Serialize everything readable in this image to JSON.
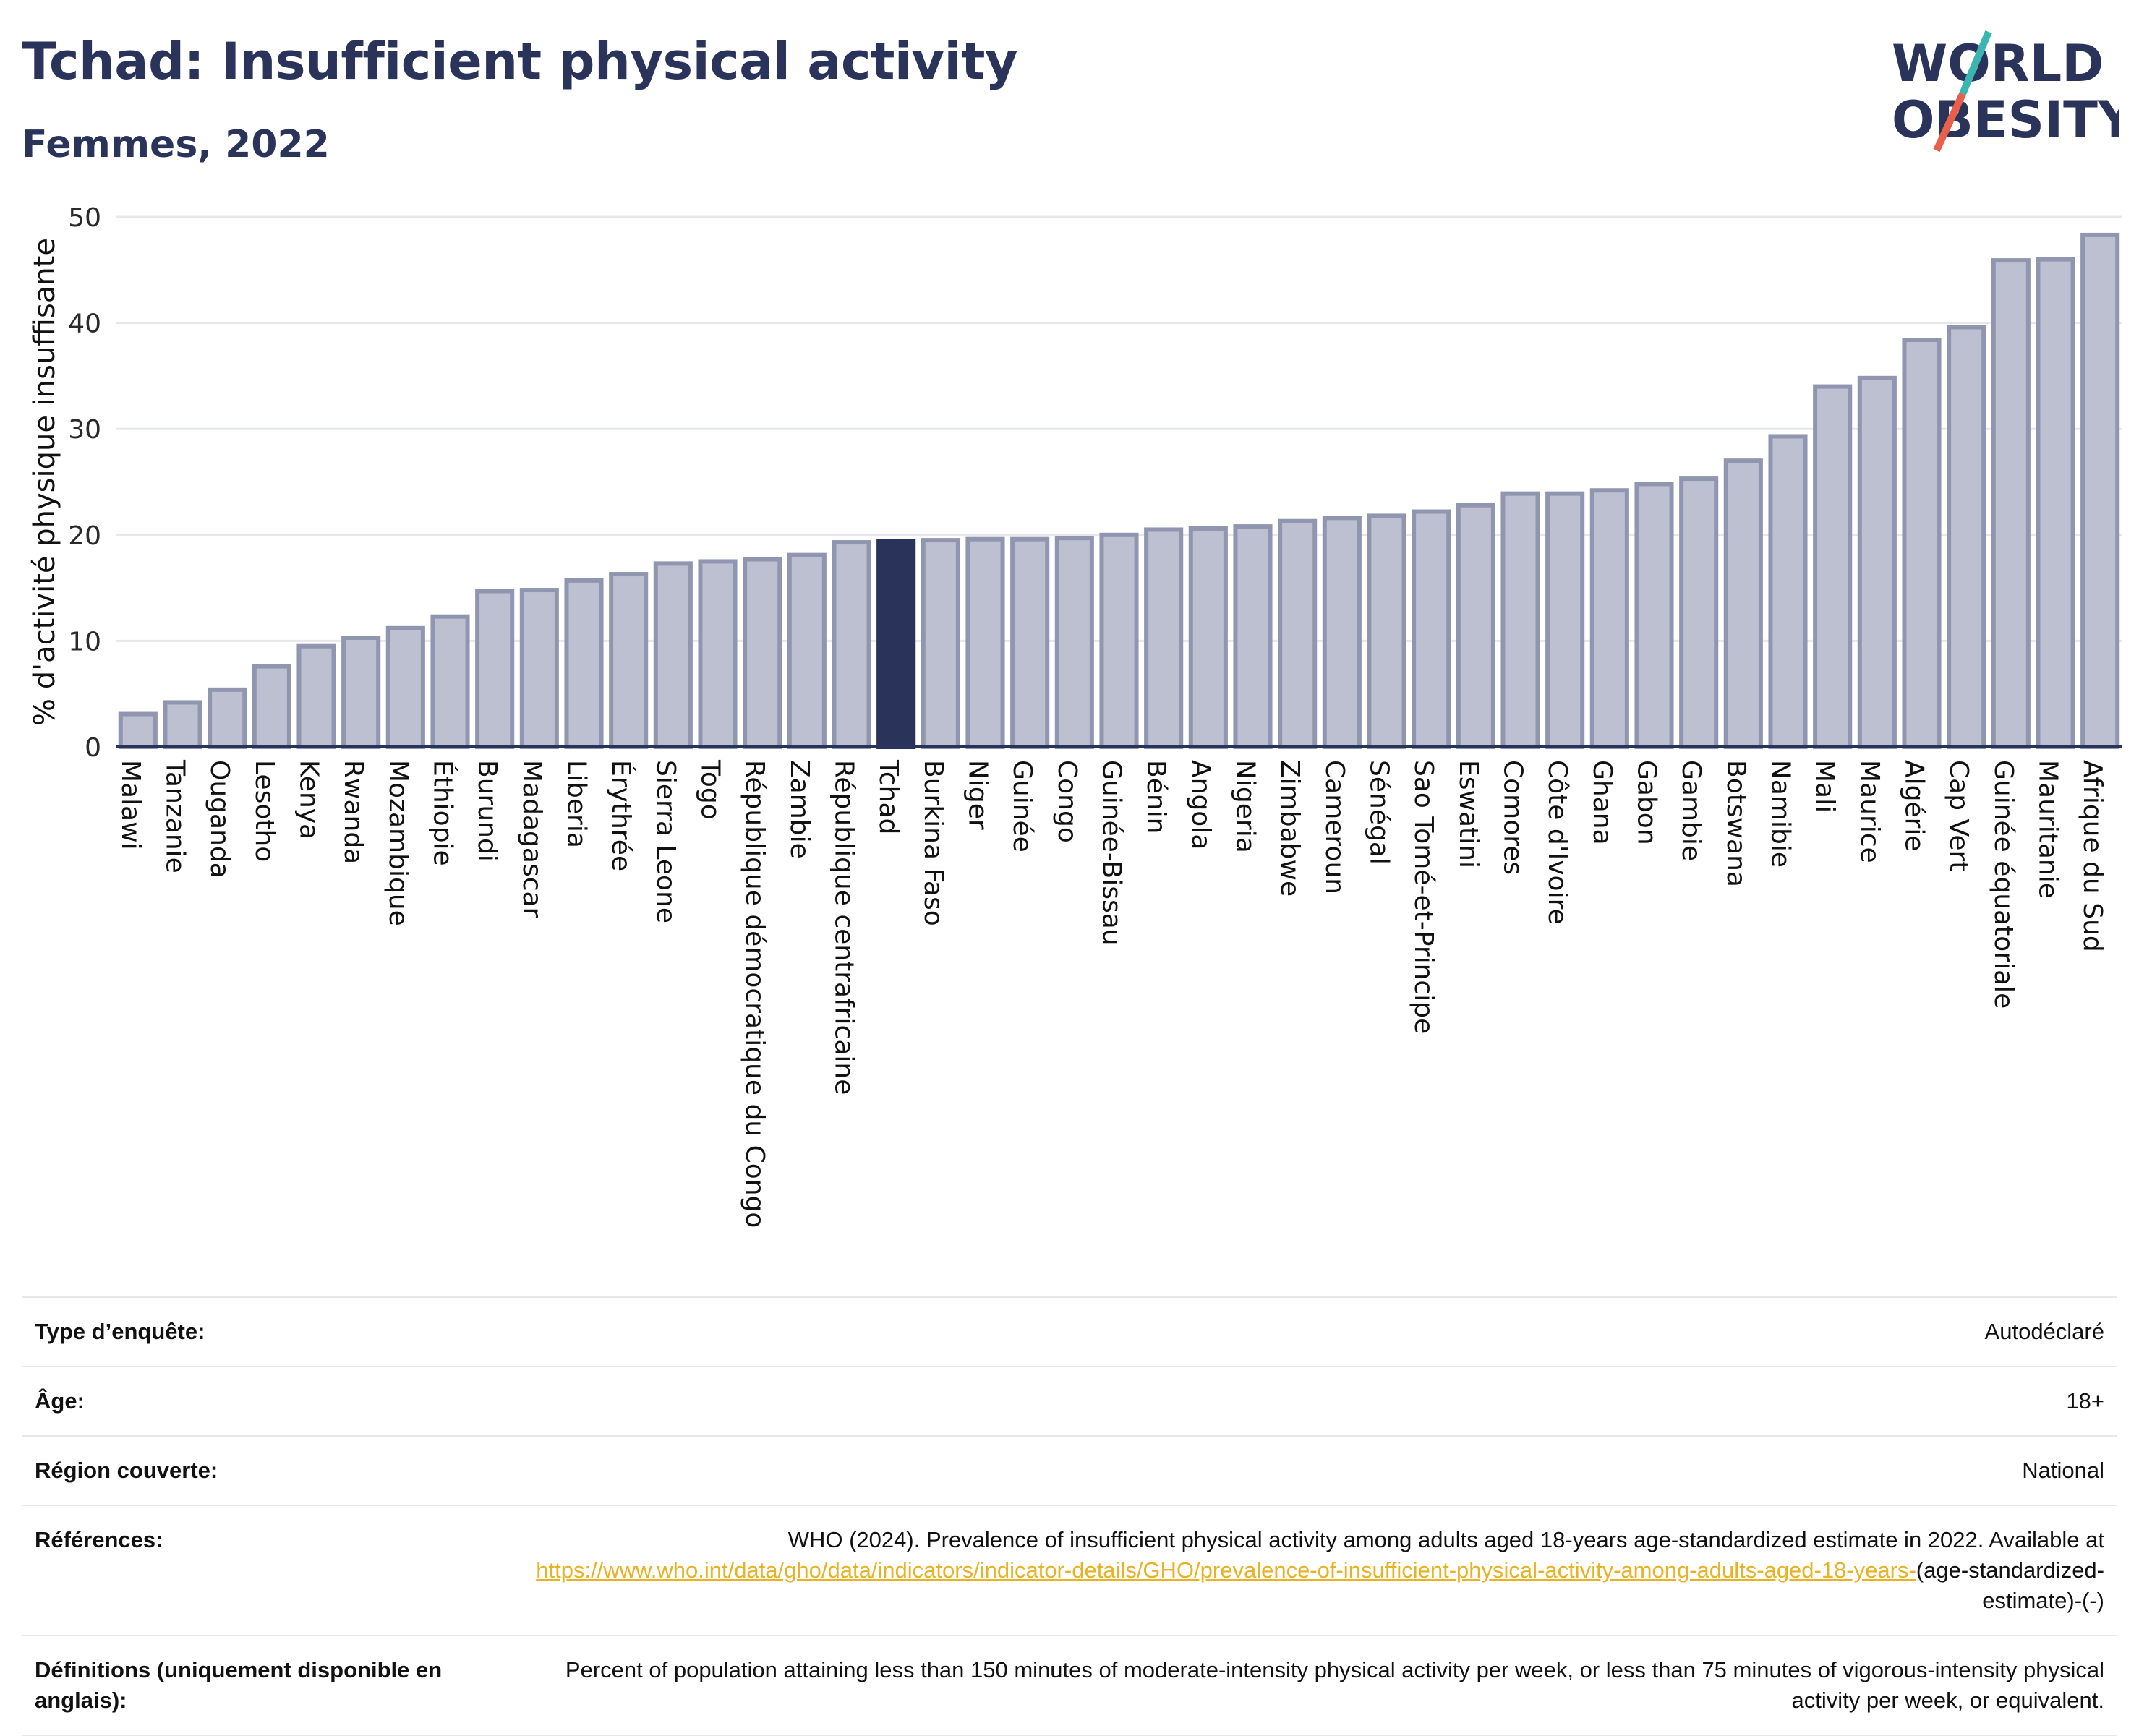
{
  "header": {
    "title": "Tchad: Insufficient physical activity",
    "subtitle": "Femmes, 2022"
  },
  "logo": {
    "line1": "WORLD",
    "line2": "OBESITY",
    "colors": {
      "text": "#2a3359",
      "slash_teal": "#3ab5b0",
      "slash_red": "#e8604c"
    }
  },
  "chart_data": {
    "type": "bar",
    "ylabel": "% d'activité physique insuffisante",
    "ylim": [
      0,
      50
    ],
    "yticks": [
      0,
      10,
      20,
      30,
      40,
      50
    ],
    "grid": true,
    "highlight": "Tchad",
    "colors": {
      "bar": "#bcc0d0",
      "bar_border": "#9096b0",
      "highlight": "#2a3359",
      "grid": "#e6e7ec"
    },
    "categories": [
      "Malawi",
      "Tanzanie",
      "Ouganda",
      "Lesotho",
      "Kenya",
      "Rwanda",
      "Mozambique",
      "Éthiopie",
      "Burundi",
      "Madagascar",
      "Liberia",
      "Érythrée",
      "Sierra Leone",
      "Togo",
      "République démocratique du Congo",
      "Zambie",
      "République centrafricaine",
      "Tchad",
      "Burkina Faso",
      "Niger",
      "Guinée",
      "Congo",
      "Guinée-Bissau",
      "Bénin",
      "Angola",
      "Nigeria",
      "Zimbabwe",
      "Cameroun",
      "Sénégal",
      "Sao Tomé-et-Principe",
      "Eswatini",
      "Comores",
      "Côte d'Ivoire",
      "Ghana",
      "Gabon",
      "Gambie",
      "Botswana",
      "Namibie",
      "Mali",
      "Maurice",
      "Algérie",
      "Cap Vert",
      "Guinée équatoriale",
      "Mauritanie",
      "Afrique du Sud"
    ],
    "values": [
      3.1,
      4.2,
      5.4,
      7.6,
      9.5,
      10.3,
      11.2,
      12.3,
      14.7,
      14.8,
      15.7,
      16.3,
      17.3,
      17.5,
      17.7,
      18.1,
      19.3,
      19.4,
      19.5,
      19.6,
      19.6,
      19.7,
      20.0,
      20.5,
      20.6,
      20.8,
      21.3,
      21.6,
      21.8,
      22.2,
      22.8,
      23.9,
      23.9,
      24.2,
      24.8,
      25.3,
      27.0,
      29.3,
      34.0,
      34.8,
      38.4,
      39.6,
      45.9,
      46.0,
      48.3
    ]
  },
  "meta": {
    "rows": [
      {
        "label": "Type d’enquête:",
        "value": "Autodéclaré"
      },
      {
        "label": "Âge:",
        "value": "18+"
      },
      {
        "label": "Région couverte:",
        "value": "National"
      }
    ],
    "references": {
      "label": "Références:",
      "text": "WHO (2024). Prevalence of insufficient physical activity among adults aged 18-years age-standardized estimate in 2022. Available at",
      "link": "https://www.who.int/data/gho/data/indicators/indicator-details/GHO/prevalence-of-insufficient-physical-activity-among-adults-aged-18-years-",
      "suffix": "(age-standardized-estimate)-(-)"
    },
    "definitions": {
      "label": "Définitions (uniquement disponible en anglais):",
      "value": "Percent of population attaining less than 150 minutes of moderate-intensity physical activity per week, or less than 75 minutes of vigorous-intensity physical activity per week, or equivalent."
    }
  }
}
